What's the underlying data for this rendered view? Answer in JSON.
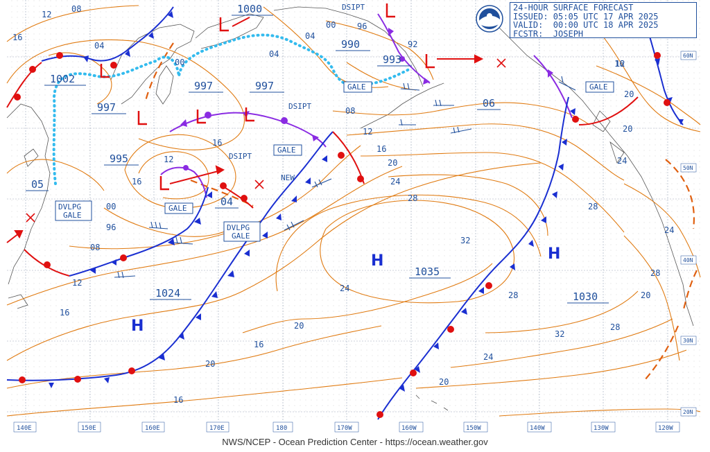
{
  "header": {
    "title": "24-HOUR SURFACE FORECAST",
    "issued": "ISSUED: 05:05 UTC 17 APR 2025",
    "valid": "VALID:  00:00 UTC 18 APR 2025",
    "forecaster": "FCSTR:  JOSEPH",
    "logo": "noaa-logo"
  },
  "credit": "NWS/NCEP - Ocean Prediction Center - https://ocean.weather.gov",
  "longitudes": [
    "140E",
    "150E",
    "160E",
    "170E",
    "180",
    "170W",
    "160W",
    "150W",
    "140W",
    "130W",
    "120W"
  ],
  "latitudes": [
    "60N",
    "50N",
    "40N",
    "30N",
    "20N"
  ],
  "highs": [
    {
      "symbol": "H",
      "pressure": "1035"
    },
    {
      "symbol": "H",
      "pressure": "1030"
    },
    {
      "symbol": "H",
      "pressure": "1024"
    }
  ],
  "lows": [
    {
      "symbol": "L",
      "pressure": "1000"
    },
    {
      "symbol": "L",
      "pressure": "1002"
    },
    {
      "symbol": "L",
      "pressure": "997"
    },
    {
      "symbol": "L",
      "pressure": "997"
    },
    {
      "symbol": "L",
      "pressure": "997"
    },
    {
      "symbol": "L",
      "pressure": "995"
    },
    {
      "symbol": "L",
      "pressure": "990"
    },
    {
      "symbol": "L",
      "pressure": "993"
    },
    {
      "symbol": "L",
      "pressure": "04"
    },
    {
      "symbol": "L",
      "pressure": "05"
    },
    {
      "symbol": "L",
      "pressure": "06"
    }
  ],
  "tags": [
    "GALE",
    "GALE",
    "GALE",
    "GALE",
    "DVLPG GALE",
    "DVLPG GALE"
  ],
  "annotations": [
    "DSIPT",
    "DSIPT",
    "DSIPT",
    "NEW"
  ],
  "isobar_labels": [
    "12",
    "08",
    "16",
    "04",
    "00",
    "04",
    "04",
    "00",
    "96",
    "92",
    "08",
    "12",
    "16",
    "20",
    "24",
    "28",
    "32",
    "28",
    "24",
    "20",
    "16",
    "20",
    "24",
    "28",
    "20",
    "16",
    "12",
    "16",
    "00",
    "96",
    "08",
    "12",
    "16",
    "20",
    "16",
    "20",
    "24",
    "28",
    "32",
    "28",
    "24",
    "20",
    "16",
    "12"
  ],
  "colors": {
    "isobar": "#e07a10",
    "cold_front": "#1a2fd1",
    "warm_front": "#e01010",
    "occluded": "#8a2be2",
    "trough": "#e06010",
    "ice": "#33bbee",
    "label": "#1f4f9c",
    "land": "#555555"
  }
}
